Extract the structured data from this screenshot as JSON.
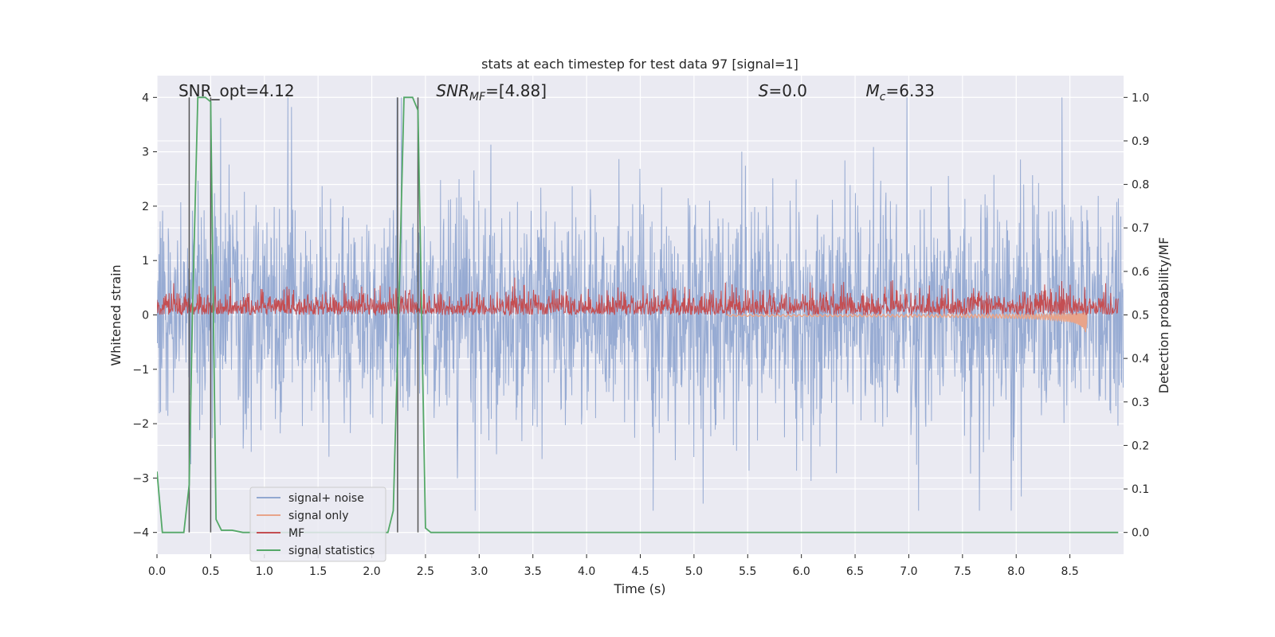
{
  "chart_data": {
    "type": "line",
    "title": "stats at each timestep for test data 97 [signal=1]",
    "xlabel": "Time (s)",
    "ylabel_left": "Whitened strain",
    "ylabel_right": "Detection probability/MF",
    "xlim": [
      0,
      9.0
    ],
    "ylim_left": [
      -4.4,
      4.4
    ],
    "ylim_right": [
      -0.05,
      1.05
    ],
    "x_ticks": [
      "0.0",
      "0.5",
      "1.0",
      "1.5",
      "2.0",
      "2.5",
      "3.0",
      "3.5",
      "4.0",
      "4.5",
      "5.0",
      "5.5",
      "6.0",
      "6.5",
      "7.0",
      "7.5",
      "8.0",
      "8.5"
    ],
    "y_ticks_left": [
      "4",
      "3",
      "2",
      "1",
      "0",
      "−1",
      "−2",
      "−3",
      "−4"
    ],
    "y_ticks_right": [
      "1.0",
      "0.9",
      "0.8",
      "0.7",
      "0.6",
      "0.5",
      "0.4",
      "0.3",
      "0.2",
      "0.1",
      "0.0"
    ],
    "grid": true,
    "legend_placement": "lower-left",
    "annotations": [
      {
        "label": "SNR_opt=4.12",
        "x": 0.2
      },
      {
        "label": "SNR",
        "sub": "MF",
        "suffix": "=[4.88]",
        "x": 2.6
      },
      {
        "label": "S",
        "suffix": "=0.0",
        "x": 5.6
      },
      {
        "label": "M",
        "sub": "c",
        "suffix": "=6.33",
        "x": 6.6
      }
    ],
    "vlines": [
      0.3,
      0.5,
      2.24,
      2.43
    ],
    "series": [
      {
        "name": "signal+ noise",
        "color": "#92a8d1",
        "amplitude": 1.4,
        "peak_max": 4.0,
        "peak_min": -3.6
      },
      {
        "name": "signal only",
        "color": "#e8a48a",
        "chirp_start": 5.3,
        "chirp_end": 8.66,
        "min_at_end": -0.52
      },
      {
        "name": "MF",
        "color": "#c44e52",
        "baseline": 0.5,
        "band": [
          0.5,
          0.6
        ],
        "peak_max": 0.65
      },
      {
        "name": "signal statistics",
        "color": "#55a868",
        "x": [
          0.0,
          0.05,
          0.25,
          0.3,
          0.33,
          0.38,
          0.45,
          0.5,
          0.55,
          0.6,
          0.7,
          0.8,
          0.9,
          2.15,
          2.2,
          2.25,
          2.3,
          2.38,
          2.43,
          2.5,
          2.55,
          8.95
        ],
        "values": [
          0.14,
          0.0,
          0.0,
          0.11,
          0.5,
          1.0,
          1.0,
          0.99,
          0.03,
          0.005,
          0.005,
          0.0,
          0.0,
          0.0,
          0.05,
          0.5,
          1.0,
          1.0,
          0.97,
          0.01,
          0.0,
          0.0
        ]
      }
    ]
  }
}
